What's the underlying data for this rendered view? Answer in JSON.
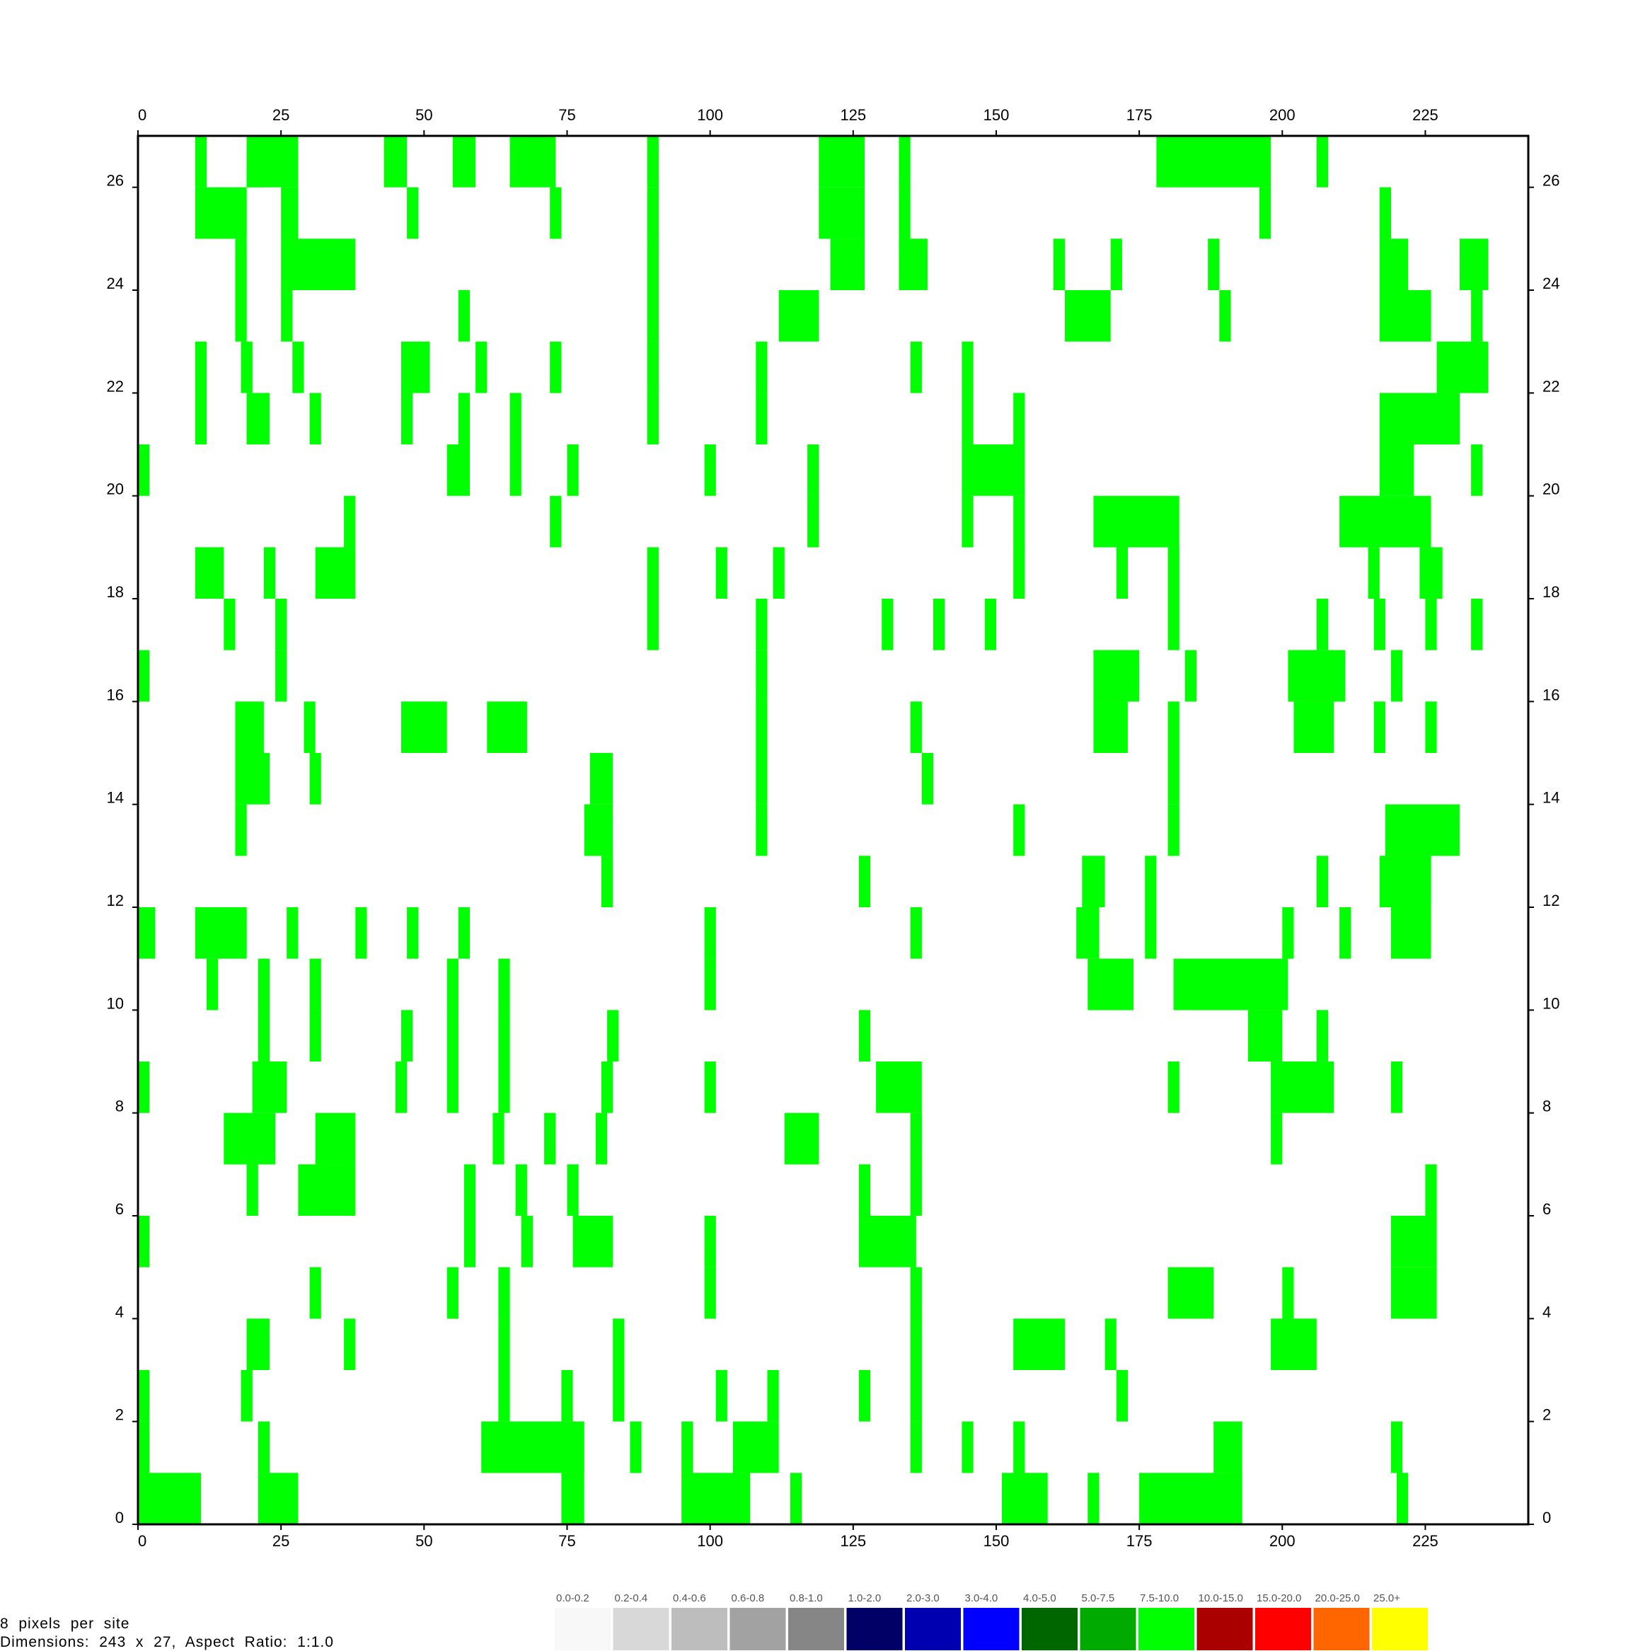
{
  "info": {
    "line1": "8  pixels  per  site",
    "line2": "Dimensions:  243  x  27,  Aspect  Ratio:  1:1.0"
  },
  "legend": [
    {
      "label": "0.0-0.2",
      "color": "#f8f8f8"
    },
    {
      "label": "0.2-0.4",
      "color": "#d8d8d8"
    },
    {
      "label": "0.4-0.6",
      "color": "#bdbdbd"
    },
    {
      "label": "0.6-0.8",
      "color": "#a2a2a2"
    },
    {
      "label": "0.8-1.0",
      "color": "#868686"
    },
    {
      "label": "1.0-2.0",
      "color": "#000066"
    },
    {
      "label": "2.0-3.0",
      "color": "#0000b0"
    },
    {
      "label": "3.0-4.0",
      "color": "#0000ff"
    },
    {
      "label": "4.0-5.0",
      "color": "#006600"
    },
    {
      "label": "5.0-7.5",
      "color": "#00aa00"
    },
    {
      "label": "7.5-10.0",
      "color": "#00ff00"
    },
    {
      "label": "10.0-15.0",
      "color": "#aa0000"
    },
    {
      "label": "15.0-20.0",
      "color": "#ff0000"
    },
    {
      "label": "20.0-25.0",
      "color": "#ff6600"
    },
    {
      "label": "25.0+",
      "color": "#ffff00"
    }
  ],
  "chart_data": {
    "type": "heatmap",
    "xlim": [
      0,
      243
    ],
    "ylim": [
      0,
      27
    ],
    "x_ticks": [
      0,
      25,
      50,
      75,
      100,
      125,
      150,
      175,
      200,
      225
    ],
    "y_ticks": [
      0,
      2,
      4,
      6,
      8,
      10,
      12,
      14,
      16,
      18,
      20,
      22,
      24,
      26
    ],
    "cell_color": "#00ff00",
    "cells_note_format": "[x_start, x_end, y_start, y_end] in site units",
    "cells": [
      [
        10,
        12,
        26,
        27
      ],
      [
        19,
        28,
        26,
        27
      ],
      [
        43,
        47,
        26,
        27
      ],
      [
        55,
        59,
        26,
        27
      ],
      [
        65,
        73,
        26,
        27
      ],
      [
        89,
        91,
        26,
        27
      ],
      [
        119,
        127,
        26,
        27
      ],
      [
        133,
        135,
        26,
        27
      ],
      [
        178,
        198,
        26,
        27
      ],
      [
        206,
        208,
        26,
        27
      ],
      [
        10,
        19,
        25,
        26
      ],
      [
        19,
        22,
        26,
        26.3
      ],
      [
        25,
        28,
        25,
        26
      ],
      [
        47,
        49,
        25,
        26
      ],
      [
        72,
        74,
        25,
        26
      ],
      [
        89,
        91,
        25,
        26
      ],
      [
        119,
        127,
        25,
        26
      ],
      [
        133,
        135,
        25,
        26
      ],
      [
        196,
        198,
        25,
        26
      ],
      [
        217,
        219,
        25,
        26
      ],
      [
        17,
        19,
        24,
        25
      ],
      [
        25,
        38,
        24,
        25
      ],
      [
        89,
        91,
        24,
        25
      ],
      [
        121,
        127,
        24,
        25
      ],
      [
        133,
        138,
        24,
        25
      ],
      [
        160,
        162,
        24,
        25
      ],
      [
        170,
        172,
        24,
        25
      ],
      [
        187,
        189,
        24,
        25
      ],
      [
        217,
        222,
        24,
        25
      ],
      [
        231,
        236,
        24,
        25
      ],
      [
        17,
        19,
        23,
        24
      ],
      [
        25,
        27,
        23,
        24
      ],
      [
        56,
        58,
        23,
        24
      ],
      [
        89,
        91,
        23,
        24
      ],
      [
        112,
        119,
        23,
        24
      ],
      [
        162,
        170,
        23,
        24
      ],
      [
        189,
        191,
        23,
        24
      ],
      [
        217,
        226,
        23,
        24
      ],
      [
        233,
        235,
        23,
        24
      ],
      [
        10,
        12,
        22,
        23
      ],
      [
        18,
        20,
        22,
        23
      ],
      [
        27,
        29,
        22,
        23
      ],
      [
        46,
        51,
        22,
        23
      ],
      [
        59,
        61,
        22,
        23
      ],
      [
        72,
        74,
        22,
        23
      ],
      [
        89,
        91,
        22,
        23
      ],
      [
        108,
        110,
        22,
        23
      ],
      [
        135,
        137,
        22,
        23
      ],
      [
        144,
        146,
        22,
        23
      ],
      [
        227,
        236,
        22,
        23
      ],
      [
        10,
        12,
        21,
        22
      ],
      [
        19,
        23,
        21,
        22
      ],
      [
        30,
        32,
        21,
        22
      ],
      [
        46,
        48,
        21,
        22
      ],
      [
        56,
        58,
        21,
        22
      ],
      [
        65,
        67,
        21,
        22
      ],
      [
        89,
        91,
        21,
        22
      ],
      [
        108,
        110,
        21,
        22
      ],
      [
        144,
        146,
        21,
        22
      ],
      [
        153,
        155,
        21,
        22
      ],
      [
        217,
        231,
        21,
        22
      ],
      [
        0,
        2,
        20,
        21
      ],
      [
        54,
        58,
        20,
        21
      ],
      [
        65,
        67,
        20,
        21
      ],
      [
        75,
        77,
        20,
        21
      ],
      [
        99,
        101,
        20,
        21
      ],
      [
        117,
        119,
        20,
        21
      ],
      [
        144,
        155,
        20,
        21
      ],
      [
        217,
        223,
        20,
        21
      ],
      [
        233,
        235,
        20,
        21
      ],
      [
        36,
        38,
        19,
        20
      ],
      [
        72,
        74,
        19,
        20
      ],
      [
        117,
        119,
        19,
        20
      ],
      [
        144,
        146,
        19,
        20
      ],
      [
        153,
        155,
        19,
        20
      ],
      [
        167,
        182,
        19,
        20
      ],
      [
        210,
        226,
        19,
        20
      ],
      [
        10,
        15,
        18,
        19
      ],
      [
        22,
        24,
        18,
        19
      ],
      [
        31,
        38,
        18,
        19
      ],
      [
        89,
        91,
        18,
        19
      ],
      [
        101,
        103,
        18,
        19
      ],
      [
        111,
        113,
        18,
        19
      ],
      [
        153,
        155,
        18,
        19
      ],
      [
        171,
        173,
        18,
        19
      ],
      [
        180,
        182,
        18,
        19
      ],
      [
        215,
        217,
        18,
        19
      ],
      [
        224,
        228,
        18,
        19
      ],
      [
        15,
        17,
        17,
        18
      ],
      [
        24,
        26,
        17,
        18
      ],
      [
        89,
        91,
        17,
        18
      ],
      [
        108,
        110,
        17,
        18
      ],
      [
        130,
        132,
        17,
        18
      ],
      [
        139,
        141,
        17,
        18
      ],
      [
        148,
        150,
        17,
        18
      ],
      [
        180,
        182,
        17,
        18
      ],
      [
        206,
        208,
        17,
        18
      ],
      [
        216,
        218,
        17,
        18
      ],
      [
        225,
        227,
        17,
        18
      ],
      [
        233,
        235,
        17,
        18
      ],
      [
        0,
        2,
        16,
        17
      ],
      [
        24,
        26,
        16,
        17
      ],
      [
        108,
        110,
        16,
        17
      ],
      [
        167,
        175,
        16,
        17
      ],
      [
        183,
        185,
        16,
        17
      ],
      [
        201,
        211,
        16,
        17
      ],
      [
        219,
        221,
        16,
        17
      ],
      [
        17,
        22,
        15,
        16
      ],
      [
        29,
        31,
        15,
        16
      ],
      [
        46,
        54,
        15,
        16
      ],
      [
        61,
        68,
        15,
        16
      ],
      [
        108,
        110,
        15,
        16
      ],
      [
        135,
        137,
        15,
        16
      ],
      [
        167,
        173,
        15,
        16
      ],
      [
        180,
        182,
        15,
        16
      ],
      [
        202,
        209,
        15,
        16
      ],
      [
        216,
        218,
        15,
        16
      ],
      [
        225,
        227,
        15,
        16
      ],
      [
        17,
        23,
        14,
        15
      ],
      [
        30,
        32,
        14,
        15
      ],
      [
        79,
        83,
        14,
        15
      ],
      [
        108,
        110,
        14,
        15
      ],
      [
        137,
        139,
        14,
        15
      ],
      [
        180,
        182,
        14,
        15
      ],
      [
        17,
        19,
        13,
        14
      ],
      [
        78,
        83,
        13,
        14
      ],
      [
        108,
        110,
        13,
        14
      ],
      [
        153,
        155,
        13,
        14
      ],
      [
        180,
        182,
        13,
        14
      ],
      [
        218,
        231,
        13,
        14
      ],
      [
        81,
        83,
        12,
        13
      ],
      [
        126,
        128,
        12,
        13
      ],
      [
        165,
        169,
        12,
        13
      ],
      [
        176,
        178,
        12,
        13
      ],
      [
        206,
        208,
        12,
        13
      ],
      [
        217,
        226,
        12,
        13
      ],
      [
        0,
        3,
        11,
        12
      ],
      [
        10,
        19,
        11,
        12
      ],
      [
        26,
        28,
        11,
        12
      ],
      [
        38,
        40,
        11,
        12
      ],
      [
        47,
        49,
        11,
        12
      ],
      [
        56,
        58,
        11,
        12
      ],
      [
        99,
        101,
        11,
        12
      ],
      [
        135,
        137,
        11,
        12
      ],
      [
        164,
        168,
        11,
        12
      ],
      [
        176,
        178,
        11,
        12
      ],
      [
        200,
        202,
        11,
        12
      ],
      [
        210,
        212,
        11,
        12
      ],
      [
        219,
        226,
        11,
        12
      ],
      [
        12,
        14,
        10,
        11
      ],
      [
        21,
        23,
        10,
        11
      ],
      [
        30,
        32,
        10,
        11
      ],
      [
        54,
        56,
        10,
        11
      ],
      [
        63,
        65,
        10,
        11
      ],
      [
        99,
        101,
        10,
        11
      ],
      [
        166,
        174,
        10,
        11
      ],
      [
        181,
        201,
        10,
        11
      ],
      [
        21,
        23,
        9,
        10
      ],
      [
        30,
        32,
        9,
        10
      ],
      [
        46,
        48,
        9,
        10
      ],
      [
        54,
        56,
        9,
        10
      ],
      [
        63,
        65,
        9,
        10
      ],
      [
        82,
        84,
        9,
        10
      ],
      [
        126,
        128,
        9,
        10
      ],
      [
        194,
        200,
        9,
        10
      ],
      [
        206,
        208,
        9,
        10
      ],
      [
        0,
        2,
        8,
        9
      ],
      [
        20,
        26,
        8,
        9
      ],
      [
        45,
        47,
        8,
        9
      ],
      [
        54,
        56,
        8,
        9
      ],
      [
        63,
        65,
        8,
        9
      ],
      [
        81,
        83,
        8,
        9
      ],
      [
        99,
        101,
        8,
        9
      ],
      [
        129,
        137,
        8,
        9
      ],
      [
        180,
        182,
        8,
        9
      ],
      [
        198,
        209,
        8,
        9
      ],
      [
        219,
        221,
        8,
        9
      ],
      [
        15,
        24,
        7,
        8
      ],
      [
        31,
        38,
        7,
        8
      ],
      [
        62,
        64,
        7,
        8
      ],
      [
        71,
        73,
        7,
        8
      ],
      [
        80,
        82,
        7,
        8
      ],
      [
        113,
        119,
        7,
        8
      ],
      [
        135,
        137,
        7,
        8
      ],
      [
        198,
        200,
        7,
        8
      ],
      [
        19,
        21,
        6,
        7
      ],
      [
        28,
        38,
        6,
        7
      ],
      [
        57,
        59,
        6,
        7
      ],
      [
        66,
        68,
        6,
        7
      ],
      [
        75,
        77,
        6,
        7
      ],
      [
        126,
        128,
        6,
        7
      ],
      [
        135,
        137,
        6,
        7
      ],
      [
        225,
        227,
        6,
        7
      ],
      [
        0,
        2,
        5,
        6
      ],
      [
        57,
        59,
        5,
        6
      ],
      [
        67,
        69,
        5,
        6
      ],
      [
        76,
        83,
        5,
        6
      ],
      [
        99,
        101,
        5,
        6
      ],
      [
        126,
        136,
        5,
        6
      ],
      [
        219,
        227,
        5,
        6
      ],
      [
        30,
        32,
        4,
        5
      ],
      [
        54,
        56,
        4,
        5
      ],
      [
        63,
        65,
        4,
        5
      ],
      [
        99,
        101,
        4,
        5
      ],
      [
        135,
        137,
        4,
        5
      ],
      [
        180,
        188,
        4,
        5
      ],
      [
        200,
        202,
        4,
        5
      ],
      [
        219,
        227,
        4,
        5
      ],
      [
        19,
        23,
        3,
        4
      ],
      [
        36,
        38,
        3,
        4
      ],
      [
        63,
        65,
        3,
        4
      ],
      [
        83,
        85,
        3,
        4
      ],
      [
        135,
        137,
        3,
        4
      ],
      [
        153,
        162,
        3,
        4
      ],
      [
        169,
        171,
        3,
        4
      ],
      [
        198,
        206,
        3,
        4
      ],
      [
        0,
        2,
        2,
        3
      ],
      [
        18,
        20,
        2,
        3
      ],
      [
        63,
        65,
        2,
        3
      ],
      [
        74,
        76,
        2,
        3
      ],
      [
        83,
        85,
        2,
        3
      ],
      [
        101,
        103,
        2,
        3
      ],
      [
        110,
        112,
        2,
        3
      ],
      [
        126,
        128,
        2,
        3
      ],
      [
        135,
        137,
        2,
        3
      ],
      [
        171,
        173,
        2,
        3
      ],
      [
        0,
        2,
        1,
        2
      ],
      [
        21,
        23,
        1,
        2
      ],
      [
        60,
        78,
        1,
        2
      ],
      [
        86,
        88,
        1,
        2
      ],
      [
        95,
        97,
        1,
        2
      ],
      [
        104,
        112,
        1,
        2
      ],
      [
        135,
        137,
        1,
        2
      ],
      [
        144,
        146,
        1,
        2
      ],
      [
        153,
        155,
        1,
        2
      ],
      [
        188,
        193,
        1,
        2
      ],
      [
        219,
        221,
        1,
        2
      ],
      [
        0,
        11,
        0,
        1
      ],
      [
        21,
        28,
        0,
        1
      ],
      [
        74,
        78,
        0,
        1
      ],
      [
        95,
        107,
        0,
        1
      ],
      [
        114,
        116,
        0,
        1
      ],
      [
        151,
        159,
        0,
        1
      ],
      [
        166,
        168,
        0,
        1
      ],
      [
        175,
        193,
        0,
        1
      ],
      [
        220,
        222,
        0,
        1
      ]
    ]
  }
}
